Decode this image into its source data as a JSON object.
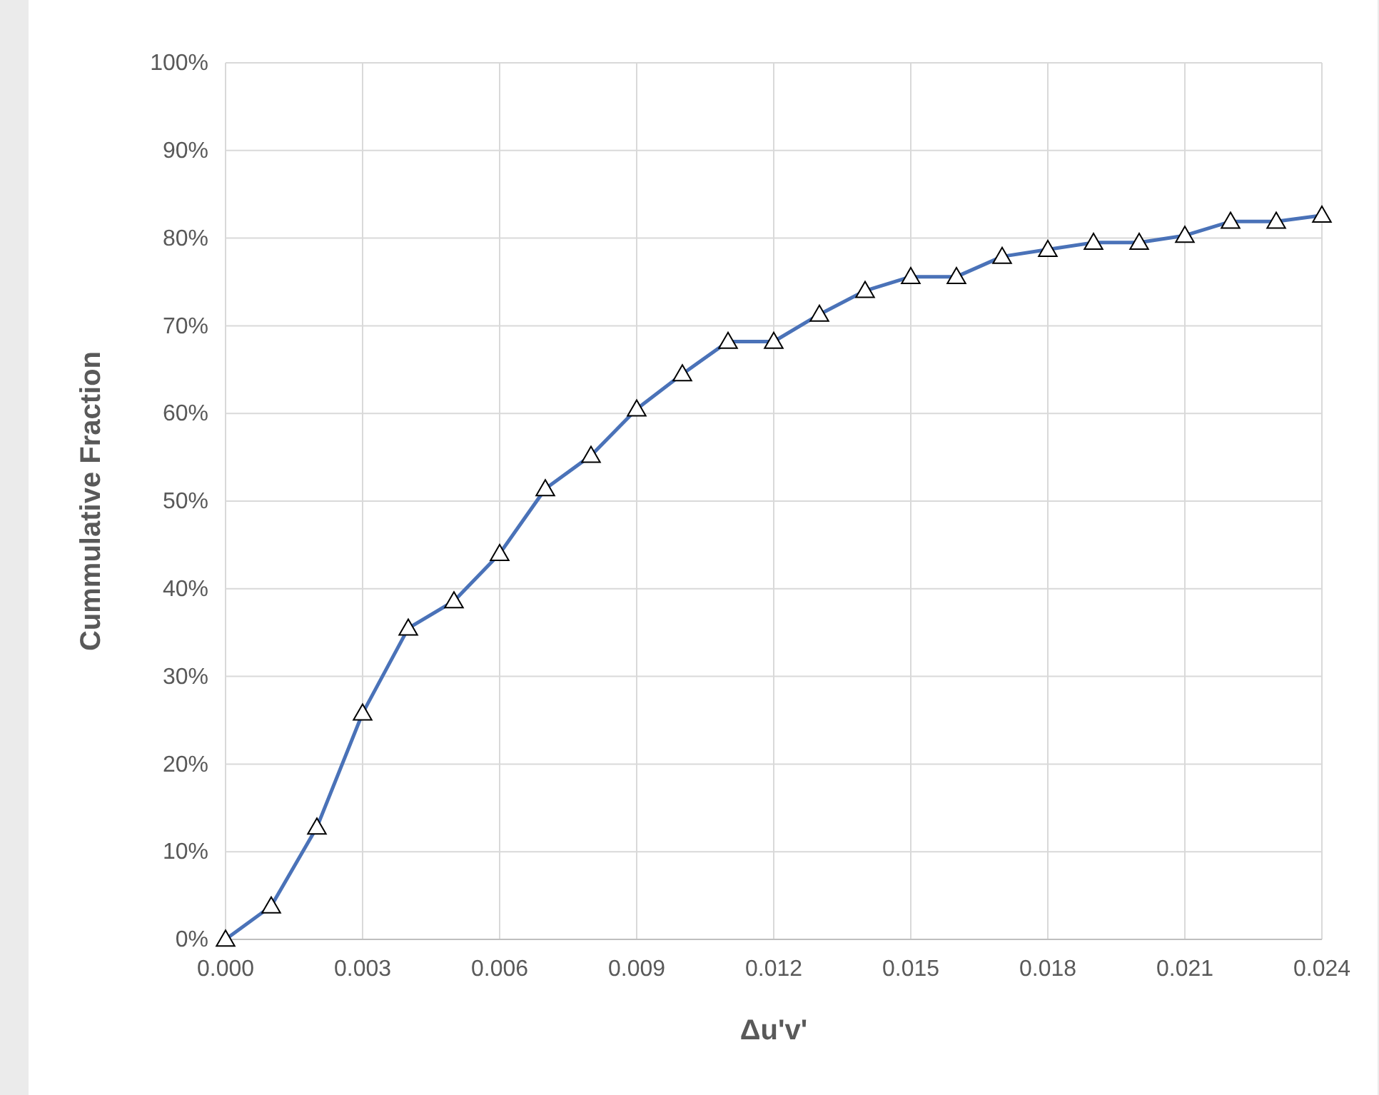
{
  "chart_data": {
    "type": "line",
    "xlabel": "Δu'v'",
    "ylabel": "Cummulative Fraction",
    "x": [
      0,
      0.001,
      0.002,
      0.003,
      0.004,
      0.005,
      0.006,
      0.007,
      0.008,
      0.009,
      0.01,
      0.011,
      0.012,
      0.013,
      0.014,
      0.015,
      0.016,
      0.017,
      0.018,
      0.019,
      0.02,
      0.021,
      0.022,
      0.023,
      0.024
    ],
    "series": [
      {
        "color": "#4a72b8",
        "values": [
          0,
          3.8,
          12.8,
          25.8,
          35.5,
          38.6,
          44,
          51.4,
          55.2,
          60.5,
          64.5,
          68.2,
          68.2,
          71.3,
          74,
          75.6,
          75.6,
          77.9,
          78.7,
          79.5,
          79.5,
          80.3,
          81.9,
          81.9,
          82.6
        ]
      }
    ],
    "xlim": [
      0,
      0.024
    ],
    "ylim": [
      0,
      100
    ],
    "xticks": [
      {
        "value": 0,
        "label": "0.000"
      },
      {
        "value": 0.003,
        "label": "0.003"
      },
      {
        "value": 0.006,
        "label": "0.006"
      },
      {
        "value": 0.009,
        "label": "0.009"
      },
      {
        "value": 0.012,
        "label": "0.012"
      },
      {
        "value": 0.015,
        "label": "0.015"
      },
      {
        "value": 0.018,
        "label": "0.018"
      },
      {
        "value": 0.021,
        "label": "0.021"
      },
      {
        "value": 0.024,
        "label": "0.024"
      }
    ],
    "yticks": [
      {
        "value": 0,
        "label": "0%"
      },
      {
        "value": 10,
        "label": "10%"
      },
      {
        "value": 20,
        "label": "20%"
      },
      {
        "value": 30,
        "label": "30%"
      },
      {
        "value": 40,
        "label": "40%"
      },
      {
        "value": 50,
        "label": "50%"
      },
      {
        "value": 60,
        "label": "60%"
      },
      {
        "value": 70,
        "label": "70%"
      },
      {
        "value": 80,
        "label": "80%"
      },
      {
        "value": 90,
        "label": "90%"
      },
      {
        "value": 100,
        "label": "100%"
      }
    ],
    "grid": true,
    "marker": "triangle",
    "line_style": "solid"
  }
}
